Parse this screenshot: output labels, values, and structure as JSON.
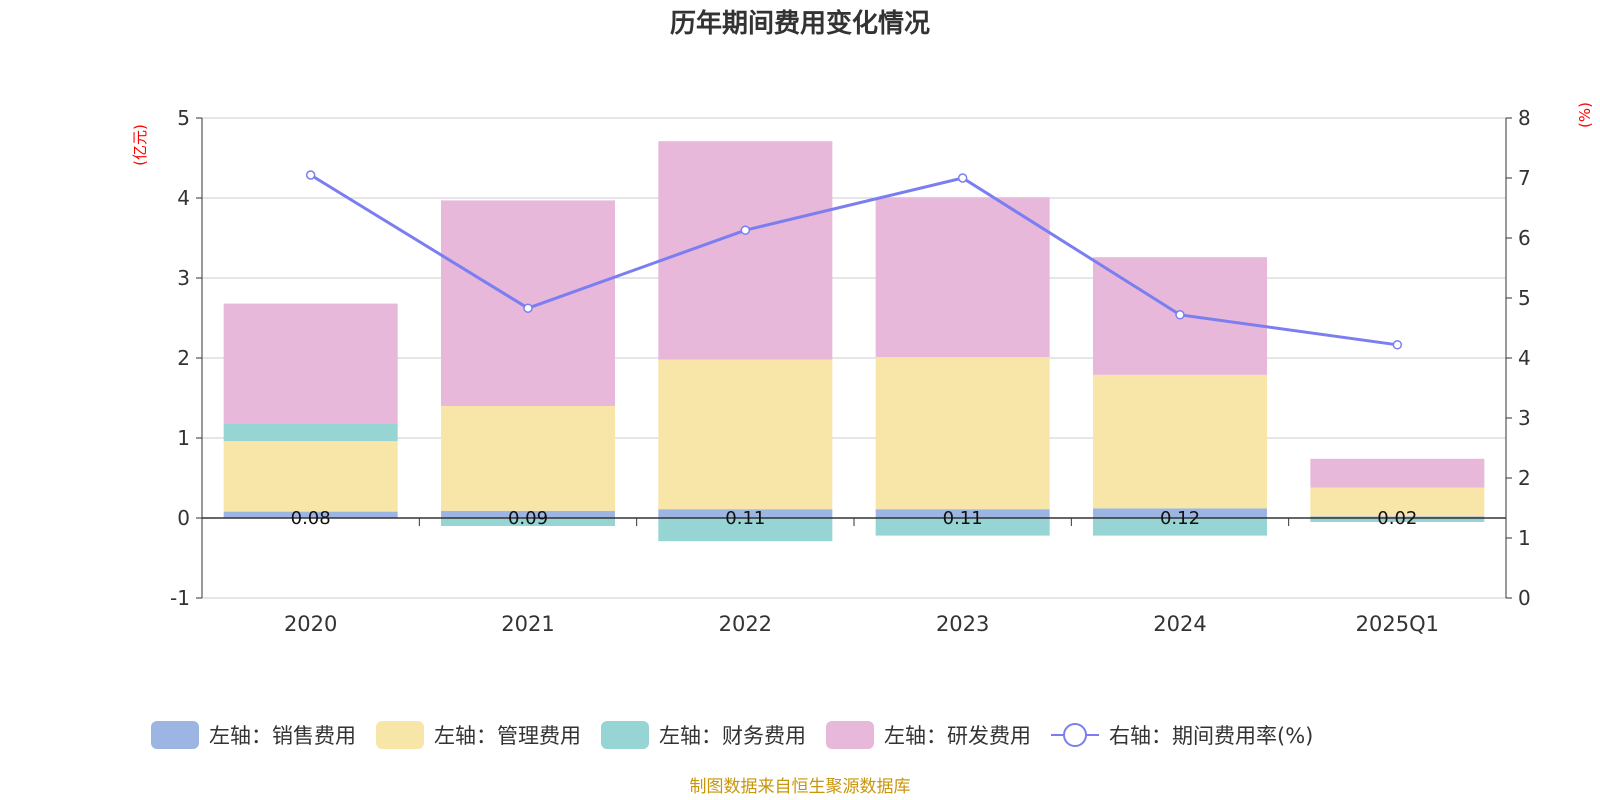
{
  "colors": {
    "sales": "#9db5e2",
    "mgmt": "#f8e6a8",
    "finance": "#97d4d4",
    "rd": "#e7b8d9",
    "rate": "#7a7ef0",
    "axis_unit": "#ff0000",
    "source": "#c8960a",
    "grid": "#cccccc",
    "axis": "#333333"
  },
  "chart_data": {
    "type": "bar",
    "title": "历年期间费用变化情况",
    "categories": [
      "2020",
      "2021",
      "2022",
      "2023",
      "2024",
      "2025Q1"
    ],
    "left_axis": {
      "unit": "(亿元)",
      "ylim": [
        -1,
        5
      ],
      "ticks": [
        "-1",
        "0",
        "1",
        "2",
        "3",
        "4",
        "5"
      ]
    },
    "right_axis": {
      "unit": "(%)",
      "ylim": [
        0,
        8
      ],
      "ticks": [
        "0",
        "1",
        "2",
        "3",
        "4",
        "5",
        "6",
        "7",
        "8"
      ]
    },
    "series": [
      {
        "name": "左轴：销售费用",
        "key": "sales",
        "type": "bar",
        "axis": "left",
        "values": [
          0.08,
          0.09,
          0.11,
          0.11,
          0.12,
          0.02
        ],
        "labels": [
          "0.08",
          "0.09",
          "0.11",
          "0.11",
          "0.12",
          "0.02"
        ]
      },
      {
        "name": "左轴：管理费用",
        "key": "mgmt",
        "type": "bar",
        "axis": "left",
        "values": [
          0.88,
          1.31,
          1.87,
          1.9,
          1.67,
          0.36
        ]
      },
      {
        "name": "左轴：财务费用",
        "key": "finance",
        "type": "bar",
        "axis": "left",
        "values": [
          0.22,
          -0.1,
          -0.29,
          -0.22,
          -0.22,
          -0.05
        ]
      },
      {
        "name": "左轴：研发费用",
        "key": "rd",
        "type": "bar",
        "axis": "left",
        "values": [
          1.5,
          2.57,
          2.73,
          2.0,
          1.47,
          0.36
        ]
      },
      {
        "name": "右轴：期间费用率(%)",
        "key": "rate",
        "type": "line",
        "axis": "right",
        "values": [
          7.05,
          4.83,
          6.13,
          7.0,
          4.72,
          4.22
        ]
      }
    ],
    "grid": true,
    "legend_position": "bottom"
  },
  "source_text": "制图数据来自恒生聚源数据库"
}
